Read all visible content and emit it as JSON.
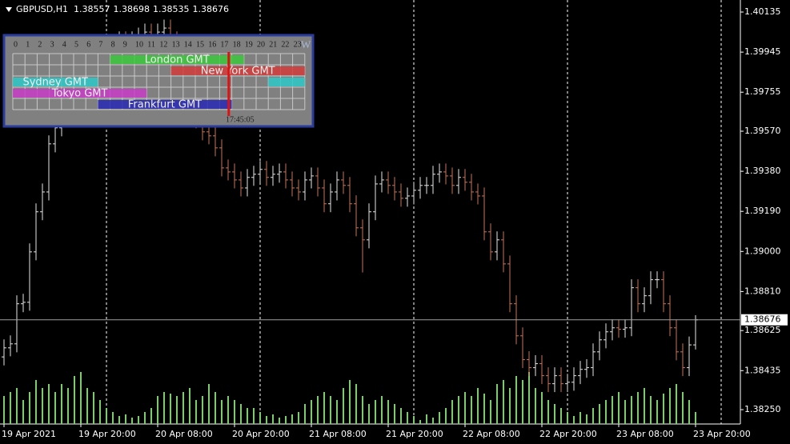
{
  "chart_data": {
    "type": "ohlc",
    "title": "GBPUSD,H1",
    "open": [
      1.385,
      1.38543,
      1.38562,
      1.38752,
      1.38759,
      1.38998,
      1.39188,
      1.39282,
      1.3951,
      1.39586,
      1.39661,
      1.39737,
      1.39813,
      1.39851,
      1.39889,
      1.39927,
      1.39965,
      1.39946,
      1.39984,
      1.40003,
      1.39965,
      1.40003,
      1.40021,
      1.4004,
      1.40021,
      1.4004,
      1.40059,
      1.40003,
      1.39927,
      1.39813,
      1.39699,
      1.39624,
      1.39567,
      1.39548,
      1.39491,
      1.39396,
      1.39377,
      1.39339,
      1.39301,
      1.39351,
      1.39366,
      1.39389,
      1.39351,
      1.39366,
      1.39377,
      1.39339,
      1.39301,
      1.39282,
      1.39339,
      1.39358,
      1.39301,
      1.39226,
      1.39282,
      1.39339,
      1.39313,
      1.39226,
      1.39112,
      1.39055,
      1.39188,
      1.3932,
      1.39339,
      1.39313,
      1.39282,
      1.39252,
      1.39263,
      1.3929,
      1.39313,
      1.39313,
      1.39366,
      1.39377,
      1.39358,
      1.39313,
      1.39351,
      1.39328,
      1.39282,
      1.39263,
      1.39093,
      1.38998,
      1.39055,
      1.38941,
      1.38752,
      1.386,
      1.38487,
      1.38449,
      1.38468,
      1.38411,
      1.38373,
      1.38411,
      1.38373,
      1.3838,
      1.38411,
      1.38441,
      1.38449,
      1.38524,
      1.38581,
      1.38619,
      1.38638,
      1.38631,
      1.38638,
      1.38828,
      1.38752,
      1.3879,
      1.38866,
      1.38866,
      1.38752,
      1.38638,
      1.38524,
      1.38449,
      1.38557
    ],
    "high": [
      1.38583,
      1.38602,
      1.38792,
      1.38799,
      1.39038,
      1.39228,
      1.39322,
      1.3955,
      1.39626,
      1.39701,
      1.39777,
      1.39853,
      1.39891,
      1.39929,
      1.39967,
      1.40005,
      1.40005,
      1.40024,
      1.40043,
      1.40043,
      1.40043,
      1.40061,
      1.4008,
      1.4008,
      1.4008,
      1.40099,
      1.40099,
      1.40043,
      1.39967,
      1.39853,
      1.39739,
      1.39664,
      1.39607,
      1.39588,
      1.39531,
      1.39436,
      1.39417,
      1.39379,
      1.39391,
      1.39406,
      1.39429,
      1.39429,
      1.39406,
      1.39417,
      1.39417,
      1.39379,
      1.39341,
      1.39379,
      1.39398,
      1.39398,
      1.39341,
      1.39322,
      1.39379,
      1.39379,
      1.39353,
      1.39266,
      1.39152,
      1.39228,
      1.3936,
      1.39379,
      1.39379,
      1.39353,
      1.39322,
      1.39303,
      1.3933,
      1.39353,
      1.39353,
      1.39406,
      1.39417,
      1.39417,
      1.39398,
      1.39391,
      1.39391,
      1.39368,
      1.39322,
      1.39303,
      1.39133,
      1.39095,
      1.39095,
      1.38981,
      1.38792,
      1.3864,
      1.38527,
      1.38508,
      1.38508,
      1.38451,
      1.38451,
      1.38451,
      1.3842,
      1.38451,
      1.38481,
      1.38489,
      1.38564,
      1.38621,
      1.38659,
      1.38678,
      1.38678,
      1.38678,
      1.38868,
      1.38868,
      1.3883,
      1.38906,
      1.38906,
      1.38906,
      1.38792,
      1.38678,
      1.38564,
      1.38597,
      1.38698
    ],
    "low": [
      1.3846,
      1.38503,
      1.38522,
      1.38712,
      1.38719,
      1.38958,
      1.39148,
      1.39242,
      1.3947,
      1.39546,
      1.39621,
      1.39697,
      1.39773,
      1.39811,
      1.39849,
      1.39887,
      1.39906,
      1.39906,
      1.39944,
      1.39925,
      1.39925,
      1.39963,
      1.39981,
      1.39981,
      1.39981,
      1.4,
      1.39963,
      1.39887,
      1.39773,
      1.39659,
      1.39584,
      1.39527,
      1.39508,
      1.39451,
      1.39356,
      1.39337,
      1.39299,
      1.39261,
      1.39261,
      1.39311,
      1.39326,
      1.39311,
      1.39311,
      1.39326,
      1.39299,
      1.39261,
      1.39242,
      1.39242,
      1.39299,
      1.39261,
      1.39186,
      1.39186,
      1.39242,
      1.39273,
      1.39186,
      1.39072,
      1.389,
      1.39015,
      1.39148,
      1.3928,
      1.39273,
      1.39242,
      1.39212,
      1.39212,
      1.39223,
      1.3925,
      1.39273,
      1.39273,
      1.39326,
      1.39318,
      1.39273,
      1.39273,
      1.39288,
      1.39242,
      1.39223,
      1.39053,
      1.38958,
      1.38958,
      1.38901,
      1.38712,
      1.3856,
      1.38447,
      1.38409,
      1.38409,
      1.38371,
      1.38333,
      1.38333,
      1.38333,
      1.38333,
      1.3834,
      1.38371,
      1.38401,
      1.38409,
      1.38484,
      1.38541,
      1.38579,
      1.38591,
      1.38591,
      1.38598,
      1.38712,
      1.38712,
      1.3875,
      1.38826,
      1.38712,
      1.38598,
      1.38484,
      1.38409,
      1.38409,
      1.38535
    ],
    "close": [
      1.38543,
      1.38562,
      1.38752,
      1.38759,
      1.38998,
      1.39188,
      1.39282,
      1.3951,
      1.39586,
      1.39661,
      1.39737,
      1.39813,
      1.39851,
      1.39889,
      1.39927,
      1.39965,
      1.39946,
      1.39984,
      1.40003,
      1.39965,
      1.40003,
      1.40021,
      1.4004,
      1.40021,
      1.4004,
      1.40059,
      1.40003,
      1.39927,
      1.39813,
      1.39699,
      1.39624,
      1.39567,
      1.39548,
      1.39491,
      1.39396,
      1.39377,
      1.39339,
      1.39301,
      1.39351,
      1.39366,
      1.39389,
      1.39351,
      1.39366,
      1.39377,
      1.39339,
      1.39301,
      1.39282,
      1.39339,
      1.39358,
      1.39301,
      1.39226,
      1.39282,
      1.39339,
      1.39313,
      1.39226,
      1.39112,
      1.39055,
      1.39188,
      1.3932,
      1.39339,
      1.39313,
      1.39282,
      1.39252,
      1.39263,
      1.3929,
      1.39313,
      1.39313,
      1.39366,
      1.39377,
      1.39358,
      1.39313,
      1.39351,
      1.39328,
      1.39282,
      1.39263,
      1.39093,
      1.38998,
      1.39055,
      1.38941,
      1.38752,
      1.386,
      1.38487,
      1.38449,
      1.38468,
      1.38411,
      1.38373,
      1.38411,
      1.38373,
      1.3838,
      1.38411,
      1.38441,
      1.38449,
      1.38524,
      1.38581,
      1.38619,
      1.38638,
      1.38631,
      1.38638,
      1.38828,
      1.38752,
      1.3879,
      1.38866,
      1.38866,
      1.38752,
      1.38638,
      1.38524,
      1.38449,
      1.38557,
      1.38676
    ],
    "volume": [
      35,
      40,
      45,
      30,
      40,
      55,
      45,
      50,
      40,
      50,
      45,
      60,
      65,
      45,
      40,
      30,
      20,
      15,
      10,
      12,
      8,
      10,
      15,
      20,
      35,
      40,
      38,
      35,
      40,
      45,
      30,
      35,
      50,
      40,
      30,
      35,
      30,
      25,
      20,
      20,
      15,
      10,
      12,
      8,
      10,
      12,
      15,
      25,
      30,
      35,
      40,
      35,
      30,
      45,
      55,
      50,
      35,
      25,
      30,
      35,
      30,
      25,
      20,
      15,
      10,
      5,
      12,
      8,
      15,
      20,
      30,
      35,
      40,
      35,
      45,
      38,
      30,
      50,
      55,
      45,
      60,
      55,
      65,
      45,
      40,
      30,
      25,
      20,
      15,
      10,
      15,
      12,
      20,
      25,
      30,
      35,
      40,
      30,
      35,
      40,
      45,
      35,
      30,
      38,
      45,
      50,
      40,
      30,
      15
    ],
    "up_color": "#e6e6e6",
    "down_color": "#c8755a",
    "volume_color": "#7ccd6a",
    "ylim": [
      1.38182,
      1.40192
    ],
    "yticks": [
      1.40135,
      1.39945,
      1.39755,
      {
        "value": 1.3957,
        "label": "1.39570"
      },
      {
        "value": 1.3938,
        "label": "1.39380"
      },
      {
        "value": 1.3919,
        "label": "1.39190"
      },
      {
        "value": 1.39,
        "label": "1.39000"
      },
      {
        "value": 1.3881,
        "label": "1.38810"
      },
      1.38625,
      1.38435,
      {
        "value": 1.3825,
        "label": "1.38250"
      }
    ],
    "xlim": [
      -0.625,
      115
    ],
    "xticks": [
      {
        "value": 0,
        "label": "19 Apr 2021"
      },
      {
        "value": 12,
        "label": "19 Apr 20:00"
      },
      {
        "value": 24,
        "label": "20 Apr 08:00"
      },
      {
        "value": 36,
        "label": "20 Apr 20:00"
      },
      {
        "value": 48,
        "label": "21 Apr 08:00"
      },
      {
        "value": 60,
        "label": "21 Apr 20:00"
      },
      {
        "value": 72,
        "label": "22 Apr 08:00"
      },
      {
        "value": 84,
        "label": "22 Apr 20:00"
      },
      {
        "value": 96,
        "label": "23 Apr 08:00"
      },
      {
        "value": 108,
        "label": "23 Apr 20:00"
      }
    ],
    "separators": [
      16,
      40,
      64,
      88,
      112
    ],
    "grid": false
  },
  "session_panel": {
    "hours": [
      0,
      1,
      2,
      3,
      4,
      5,
      6,
      7,
      8,
      9,
      10,
      11,
      12,
      13,
      14,
      15,
      16,
      17,
      18,
      19,
      20,
      21,
      22,
      23
    ],
    "marker": "W",
    "sessions": [
      {
        "name": "London GMT",
        "color": "#3cc83c",
        "start": 8,
        "end": 19
      },
      {
        "name": "New York GMT",
        "color": "#d23c3c",
        "start": 13,
        "end": 24
      },
      {
        "name": "Sydney GMT",
        "color": "#2ec8c8",
        "start": 21,
        "end": 7
      },
      {
        "name": "Tokyo GMT",
        "color": "#c83cc8",
        "start": 0,
        "end": 11
      },
      {
        "name": "Frankfurt GMT",
        "color": "#2828b4",
        "start": 7,
        "end": 18
      }
    ],
    "now": 17.75,
    "time": "17:45:05"
  }
}
